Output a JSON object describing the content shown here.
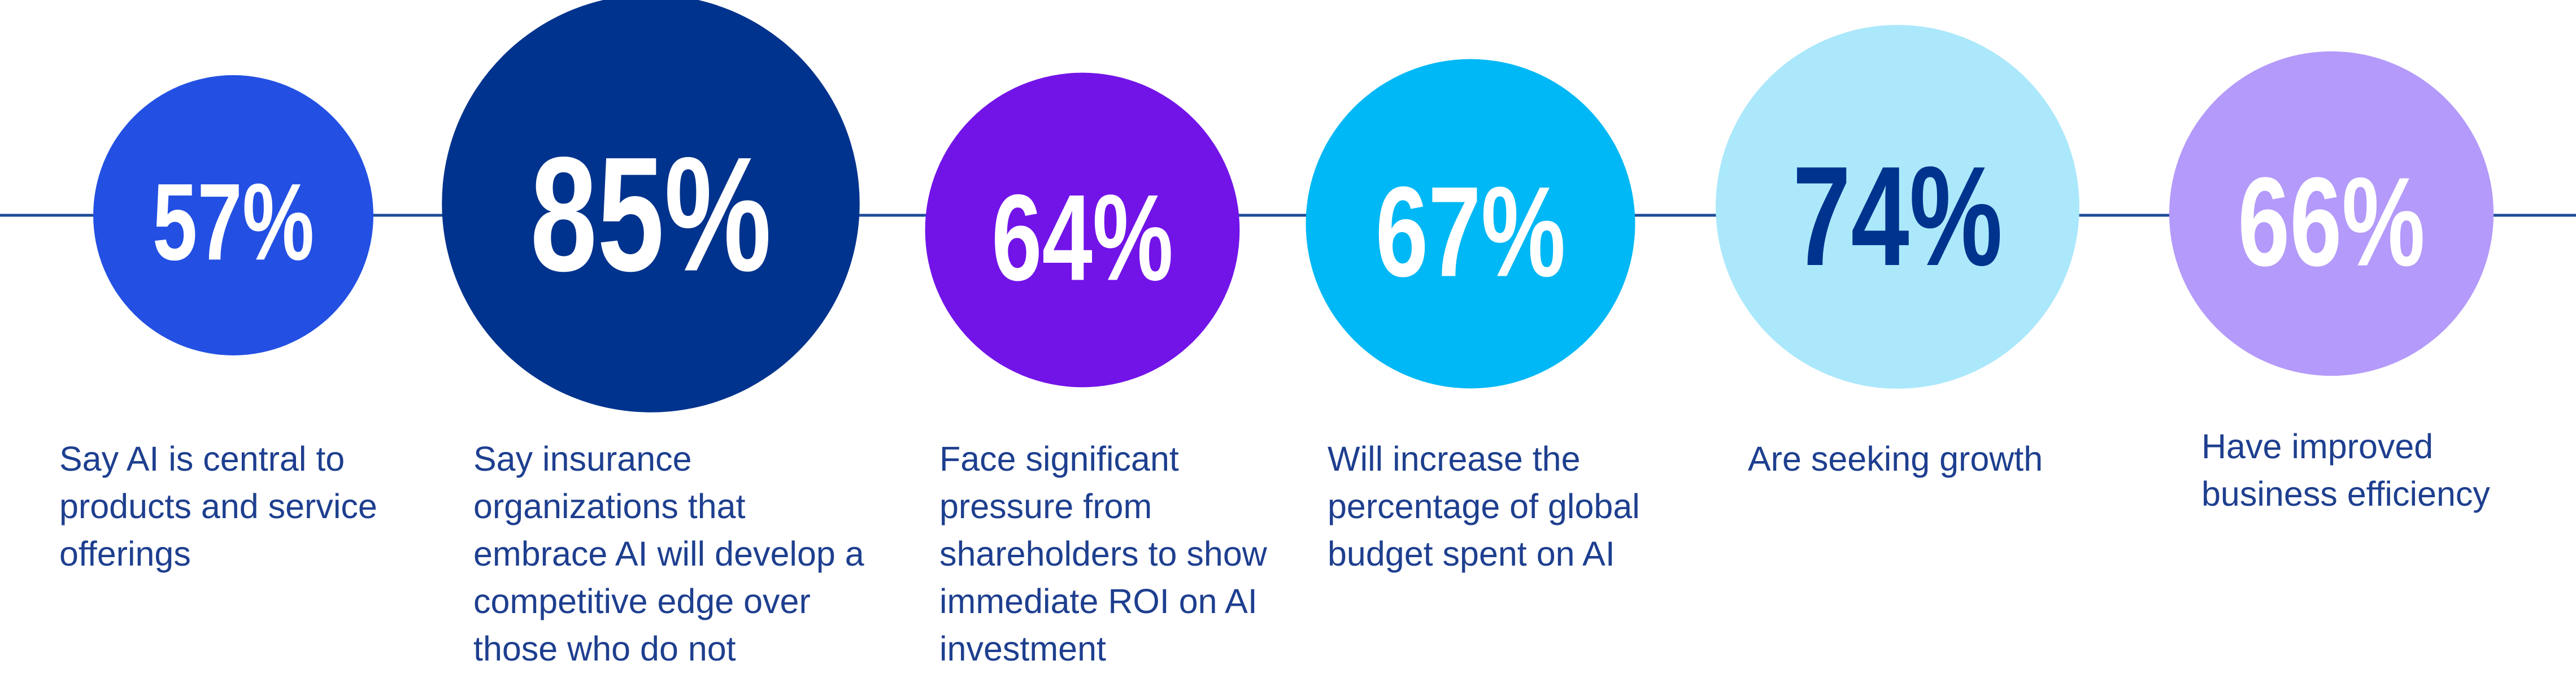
{
  "chart_data": {
    "type": "bubble",
    "categories": [
      "Say AI is central to products and service offerings",
      "Say insurance organizations that embrace AI will develop a competitive edge over those who do not",
      "Face significant pressure from shareholders to show immediate ROI on AI investment",
      "Will increase the percentage of global budget spent on AI",
      "Are seeking growth",
      "Have improved business efficiency"
    ],
    "values": [
      57,
      85,
      64,
      67,
      74,
      66
    ],
    "value_labels": [
      "57%",
      "85%",
      "64%",
      "67%",
      "74%",
      "66%"
    ],
    "colors": [
      "#2350e3",
      "#00338d",
      "#7214e8",
      "#00b8f5",
      "#abe8fb",
      "#b49afa"
    ],
    "label_colors": [
      "#ffffff",
      "#ffffff",
      "#ffffff",
      "#ffffff",
      "#00338d",
      "#ffffff"
    ],
    "line_color": "#1e4c9a",
    "text_color": "#1e3f8f"
  }
}
